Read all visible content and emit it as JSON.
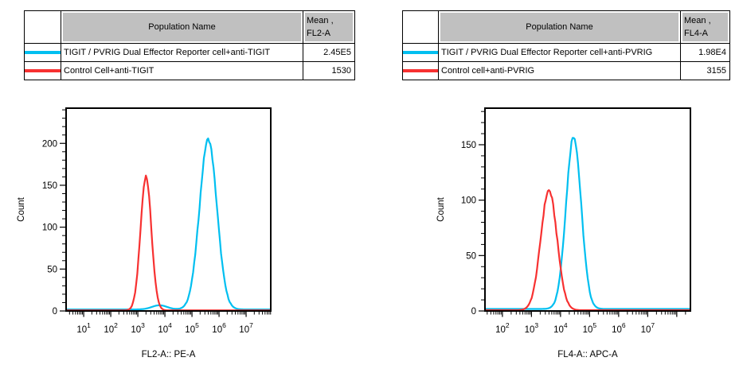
{
  "accent_colors": {
    "series_cyan": "#00bff0",
    "series_red": "#f73131",
    "table_header_gray": "#c0c0c0",
    "axis_black": "#000000"
  },
  "panels": [
    {
      "table": {
        "header": {
          "population": "Population Name",
          "mean_line1": "Mean ,",
          "mean_line2": "FL2-A"
        },
        "rows": [
          {
            "color": "#00bff0",
            "population": "TIGIT / PVRIG Dual Effector Reporter cell+anti-TIGIT",
            "mean": "2.45E5"
          },
          {
            "color": "#f73131",
            "population": "Control Cell+anti-TIGIT",
            "mean": "1530"
          }
        ]
      }
    },
    {
      "table": {
        "header": {
          "population": "Population Name",
          "mean_line1": "Mean ,",
          "mean_line2": "FL4-A"
        },
        "rows": [
          {
            "color": "#00bff0",
            "population": "TIGIT / PVRIG Dual Effector Reporter cell+anti-PVRIG",
            "mean": "1.98E4"
          },
          {
            "color": "#f73131",
            "population": "Control cell+anti-PVRIG",
            "mean": "3155"
          }
        ]
      }
    }
  ],
  "chart_data": [
    {
      "type": "line",
      "subtype": "flow-cytometry-histogram",
      "title": "",
      "xlabel": "FL2-A:: PE-A",
      "ylabel": "Count",
      "x_scale": "log10",
      "xlim_log10": [
        0.35,
        7.91
      ],
      "x_major_exponents": [
        1,
        2,
        3,
        4,
        5,
        6,
        7
      ],
      "ylim": [
        0,
        242
      ],
      "y_major_ticks": [
        0,
        50,
        100,
        150,
        200
      ],
      "y_minor_step": 10,
      "grid": false,
      "legend_position": "table-above",
      "series": [
        {
          "name": "TIGIT / PVRIG Dual Effector Reporter cell+anti-TIGIT",
          "color": "#00bff0",
          "baseline_count": 1.8,
          "peaks": [
            {
              "x": 400000,
              "log10_x": 5.6,
              "count": 203,
              "sigma_log10": 0.32
            },
            {
              "x": 6300,
              "log10_x": 3.8,
              "count": 5,
              "sigma_log10": 0.28
            }
          ]
        },
        {
          "name": "Control Cell+anti-TIGIT",
          "color": "#f73131",
          "baseline_count": 0.7,
          "peaks": [
            {
              "x": 2000,
              "log10_x": 3.3,
              "count": 160,
              "sigma_log10": 0.2
            }
          ]
        }
      ]
    },
    {
      "type": "line",
      "subtype": "flow-cytometry-histogram",
      "title": "",
      "xlabel": "FL4-A:: APC-A",
      "ylabel": "Count",
      "x_scale": "log10",
      "xlim_log10": [
        1.4,
        8.47
      ],
      "x_major_exponents": [
        2,
        3,
        4,
        5,
        6,
        7
      ],
      "ylim": [
        0,
        183
      ],
      "y_major_ticks": [
        0,
        50,
        100,
        150
      ],
      "y_minor_step": 10,
      "grid": false,
      "legend_position": "table-above",
      "series": [
        {
          "name": "TIGIT / PVRIG Dual Effector Reporter cell+anti-PVRIG",
          "color": "#00bff0",
          "baseline_count": 1.8,
          "peaks": [
            {
              "x": 28000,
              "log10_x": 4.45,
              "count": 156,
              "sigma_log10": 0.26
            }
          ]
        },
        {
          "name": "Control cell+anti-PVRIG",
          "color": "#f73131",
          "baseline_count": 0.7,
          "peaks": [
            {
              "x": 4000,
              "log10_x": 3.6,
              "count": 108,
              "sigma_log10": 0.28
            }
          ]
        }
      ]
    }
  ]
}
